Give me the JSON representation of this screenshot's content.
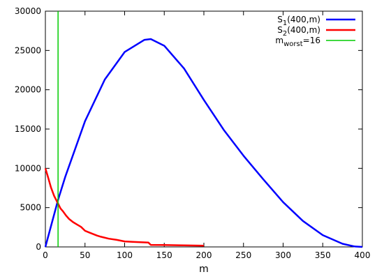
{
  "chart_data": {
    "type": "line",
    "xlabel": "m",
    "ylabel": "",
    "xlim": [
      0,
      400
    ],
    "ylim": [
      0,
      30000
    ],
    "x_ticks": [
      0,
      50,
      100,
      150,
      200,
      250,
      300,
      350,
      400
    ],
    "y_ticks": [
      0,
      5000,
      10000,
      15000,
      20000,
      25000,
      30000
    ],
    "grid": false,
    "legend_position": "top-right",
    "series": [
      {
        "name": "S1(400,m)",
        "legend": {
          "base": "S",
          "sub": "1",
          "rest": "(400,m)"
        },
        "color": "#0000ff",
        "x": [
          0,
          16,
          25,
          50,
          75,
          100,
          125,
          133,
          150,
          175,
          200,
          225,
          250,
          275,
          300,
          325,
          350,
          375,
          390,
          400
        ],
        "y": [
          0,
          6000,
          8900,
          16000,
          21300,
          24800,
          26350,
          26450,
          25600,
          22700,
          18700,
          14900,
          11600,
          8600,
          5700,
          3300,
          1500,
          400,
          60,
          0
        ]
      },
      {
        "name": "S2(400,m)",
        "legend": {
          "base": "S",
          "sub": "2",
          "rest": "(400,m)"
        },
        "color": "#ff0000",
        "x": [
          0,
          3,
          7,
          11,
          16,
          19,
          22,
          26,
          30,
          35,
          40,
          45,
          50,
          55,
          60,
          65,
          70,
          80,
          90,
          100,
          110,
          130,
          133,
          150,
          175,
          200
        ],
        "y": [
          10000,
          9000,
          7600,
          6500,
          5500,
          4900,
          4550,
          4000,
          3550,
          3150,
          2850,
          2550,
          2050,
          1850,
          1650,
          1450,
          1300,
          1050,
          900,
          700,
          650,
          550,
          260,
          240,
          200,
          150
        ]
      },
      {
        "name": "mworst=16",
        "legend": {
          "base": "m",
          "sub": "worst",
          "rest": "=16"
        },
        "color": "#00cc00",
        "vertical_x": 16
      }
    ]
  }
}
